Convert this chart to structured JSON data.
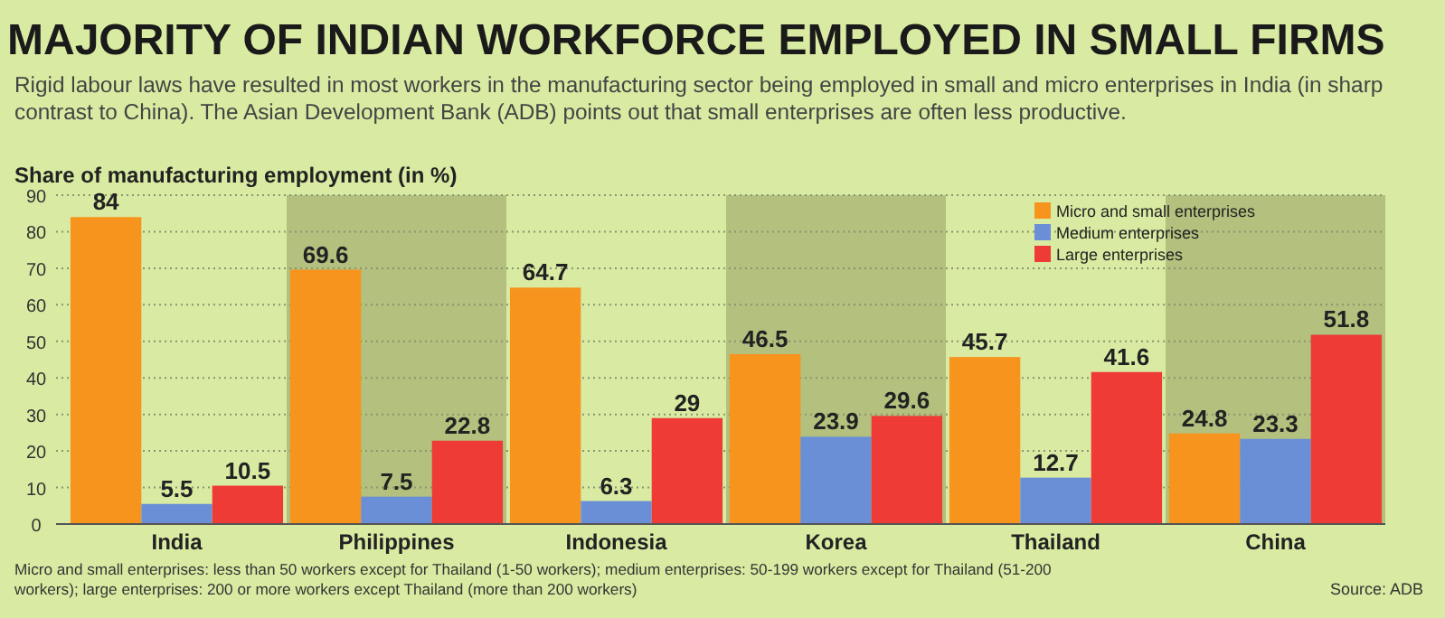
{
  "chart_data": {
    "type": "bar",
    "title": "MAJORITY OF INDIAN WORKFORCE EMPLOYED IN SMALL FIRMS",
    "subtitle": "Rigid labour laws have resulted in most workers in the manufacturing sector being employed in small and micro enterprises in India (in sharp contrast to China). The Asian Development Bank (ADB) points out that small enterprises are often less productive.",
    "ylabel": "Share of manufacturing employment (in %)",
    "categories": [
      "India",
      "Philippines",
      "Indonesia",
      "Korea",
      "Thailand",
      "China"
    ],
    "series": [
      {
        "name": "Micro and small enterprises",
        "color": "#f7941d",
        "values": [
          84,
          69.6,
          64.7,
          46.5,
          45.7,
          24.8
        ]
      },
      {
        "name": "Medium enterprises",
        "color": "#6b8fd6",
        "values": [
          5.5,
          7.5,
          6.3,
          23.9,
          12.7,
          23.3
        ]
      },
      {
        "name": "Large enterprises",
        "color": "#ee3b35",
        "values": [
          10.5,
          22.8,
          29,
          29.6,
          41.6,
          51.8
        ]
      }
    ],
    "bands": [
      {
        "axis": "x",
        "from": "Philippines",
        "to": "Philippines",
        "color": "#b3c07e"
      },
      {
        "axis": "x",
        "from": "Korea",
        "to": "Korea",
        "color": "#b3c07e"
      },
      {
        "axis": "x",
        "from": "China",
        "to": "China",
        "color": "#b3c07e"
      }
    ],
    "ylim": [
      0,
      90
    ],
    "yticks": [
      0,
      10,
      20,
      30,
      40,
      50,
      60,
      70,
      80,
      90
    ],
    "grid": "y",
    "legend": "top right",
    "data_labels": true,
    "annotations": [
      "Micro and small enterprises: less than 50 workers except for Thailand (1-50 workers); medium enterprises: 50-199 workers except for Thailand (51-200 workers); large enterprises: 200 or more workers except Thailand (more than 200 workers)",
      "Source: ADB"
    ]
  }
}
